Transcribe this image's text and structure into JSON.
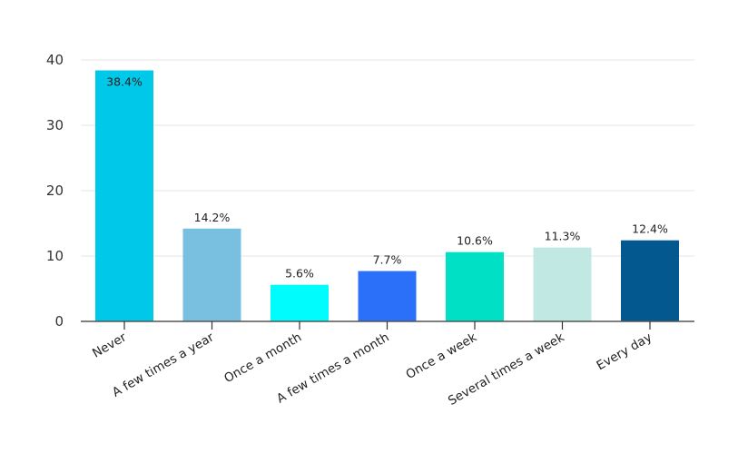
{
  "chart_data": {
    "type": "bar",
    "title": "",
    "xlabel": "",
    "ylabel": "",
    "ylim": [
      0,
      40
    ],
    "yticks": [
      0,
      10,
      20,
      30,
      40
    ],
    "ytick_labels": [
      "0",
      "10",
      "20",
      "30",
      "40"
    ],
    "grid": true,
    "legend": "none",
    "categories": [
      "Never",
      "A few times a year",
      "Once a month",
      "A few times a month",
      "Once a week",
      "Several times a week",
      "Every day"
    ],
    "values": [
      38.4,
      14.2,
      5.6,
      7.7,
      10.6,
      11.3,
      12.4
    ],
    "data_labels": [
      "38.4%",
      "14.2%",
      "5.6%",
      "7.7%",
      "10.6%",
      "11.3%",
      "12.4%"
    ],
    "colors": [
      "#00c8e8",
      "#78bfe0",
      "#00fcfc",
      "#2a70f8",
      "#00e0c4",
      "#c2e8e4",
      "#02588f"
    ],
    "gridline_color": "#e6e6e6",
    "axis_color": "#555555"
  }
}
